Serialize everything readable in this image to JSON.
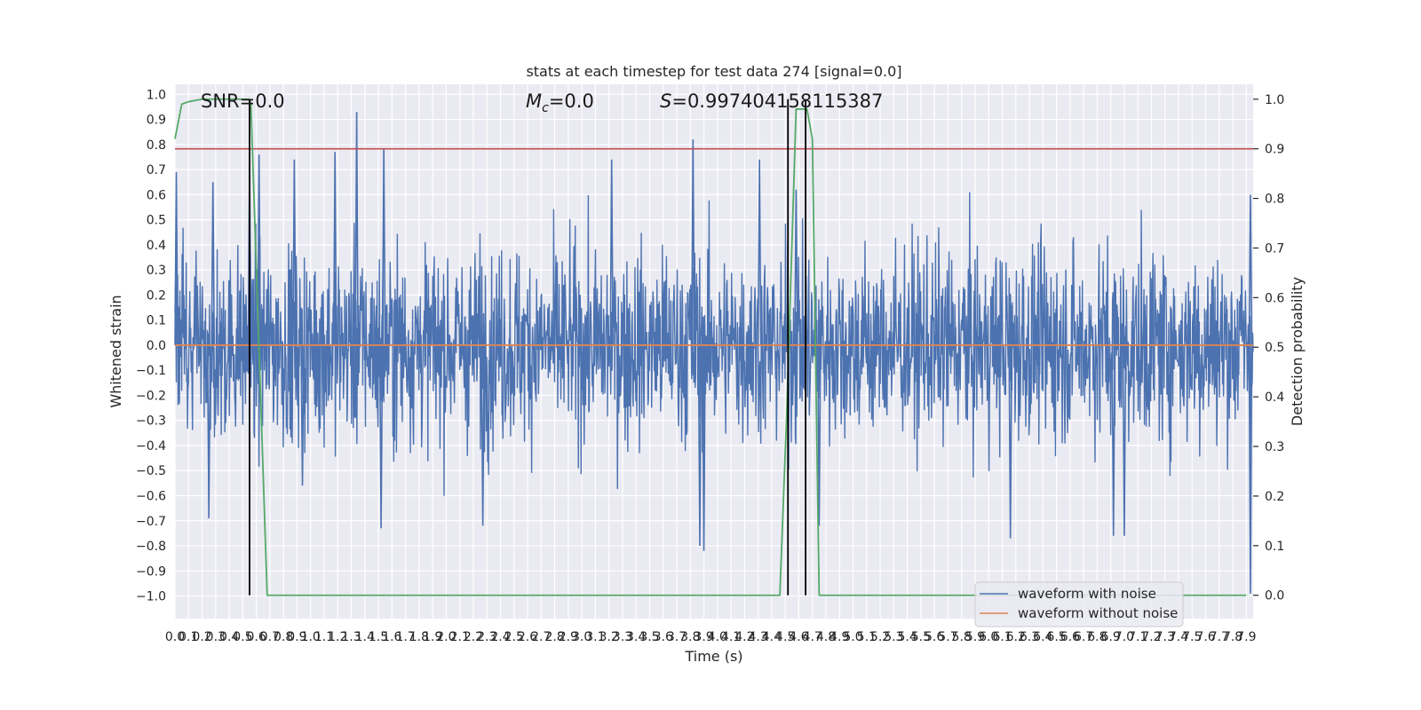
{
  "chart_data": {
    "type": "line",
    "title": "stats at each timestep for test data 274 [signal=0.0]",
    "xlabel": "Time (s)",
    "ylabel_left": "Whitened strain",
    "ylabel_right": "Detection probability",
    "xlim": [
      0.0,
      7.95
    ],
    "ylim_left": [
      -1.09,
      1.04
    ],
    "ylim_right": [
      -0.047,
      1.03
    ],
    "x_ticks": [
      "0.0",
      "0.1",
      "0.2",
      "0.3",
      "0.4",
      "0.5",
      "0.6",
      "0.7",
      "0.8",
      "0.9",
      "1.0",
      "1.1",
      "1.2",
      "1.3",
      "1.4",
      "1.5",
      "1.6",
      "1.7",
      "1.8",
      "1.9",
      "2.0",
      "2.1",
      "2.2",
      "2.3",
      "2.4",
      "2.5",
      "2.6",
      "2.7",
      "2.8",
      "2.9",
      "3.0",
      "3.1",
      "3.2",
      "3.3",
      "3.4",
      "3.5",
      "3.6",
      "3.7",
      "3.8",
      "3.9",
      "4.0",
      "4.1",
      "4.2",
      "4.3",
      "4.4",
      "4.5",
      "4.6",
      "4.7",
      "4.8",
      "4.9",
      "5.0",
      "5.1",
      "5.2",
      "5.3",
      "5.4",
      "5.5",
      "5.6",
      "5.7",
      "5.8",
      "5.9",
      "6.0",
      "6.1",
      "6.2",
      "6.3",
      "6.4",
      "6.5",
      "6.6",
      "6.7",
      "6.8",
      "6.9",
      "7.0",
      "7.1",
      "7.2",
      "7.3",
      "7.4",
      "7.5",
      "7.6",
      "7.7",
      "7.8",
      "7.9"
    ],
    "y_ticks_left": [
      "1.0",
      "0.9",
      "0.8",
      "0.7",
      "0.6",
      "0.5",
      "0.4",
      "0.3",
      "0.2",
      "0.1",
      "0.0",
      "−0.1",
      "−0.2",
      "−0.3",
      "−0.4",
      "−0.5",
      "−0.6",
      "−0.7",
      "−0.8",
      "−0.9",
      "−1.0"
    ],
    "y_ticks_right": [
      "1.0",
      "0.9",
      "0.8",
      "0.7",
      "0.6",
      "0.5",
      "0.4",
      "0.3",
      "0.2",
      "0.1",
      "0.0"
    ],
    "annotations": {
      "snr": "SNR=0.0",
      "mc_symbol": "M",
      "mc_sub": "c",
      "mc_value": "=0.0",
      "s_symbol": "S",
      "s_value": "=0.997404158115387"
    },
    "legend": {
      "placement": "lower right",
      "entries": [
        "waveform with noise",
        "waveform without noise"
      ]
    },
    "series": [
      {
        "name": "waveform with noise",
        "axis": "left",
        "color": "#4c72b0",
        "style": "noise",
        "envelope_typical": 0.45,
        "peaks": [
          {
            "x": 0.01,
            "y": 0.69
          },
          {
            "x": 0.28,
            "y": 0.65
          },
          {
            "x": 0.55,
            "y": 0.72
          },
          {
            "x": 0.62,
            "y": 0.76
          },
          {
            "x": 0.88,
            "y": 0.74
          },
          {
            "x": 1.18,
            "y": 0.77
          },
          {
            "x": 1.34,
            "y": 0.93
          },
          {
            "x": 1.54,
            "y": 0.78
          },
          {
            "x": 3.22,
            "y": 0.74
          },
          {
            "x": 3.82,
            "y": 0.82
          },
          {
            "x": 4.31,
            "y": 0.74
          },
          {
            "x": 4.58,
            "y": 0.62
          },
          {
            "x": 7.93,
            "y": 0.6
          },
          {
            "x": 3.9,
            "y": -0.82
          },
          {
            "x": 3.87,
            "y": -0.8
          },
          {
            "x": 1.52,
            "y": -0.73
          },
          {
            "x": 0.25,
            "y": -0.69
          },
          {
            "x": 2.27,
            "y": -0.72
          },
          {
            "x": 6.16,
            "y": -0.77
          },
          {
            "x": 6.92,
            "y": -0.76
          },
          {
            "x": 7.0,
            "y": -0.76
          },
          {
            "x": 7.93,
            "y": -0.99
          },
          {
            "x": 0.94,
            "y": -0.56
          },
          {
            "x": 4.75,
            "y": -0.72
          }
        ]
      },
      {
        "name": "waveform without noise",
        "axis": "left",
        "color": "#dd8452",
        "x": [
          0.0,
          7.95
        ],
        "y": [
          0.0,
          0.0
        ]
      },
      {
        "axis": "right",
        "color": "#55a868",
        "x": [
          0.0,
          0.05,
          0.1,
          0.2,
          0.55,
          0.56,
          0.68,
          4.46,
          4.51,
          4.58,
          4.66,
          4.7,
          4.75,
          7.9
        ],
        "y": [
          0.92,
          0.99,
          0.995,
          1.0,
          1.0,
          0.99,
          0.0,
          0.0,
          0.36,
          0.98,
          0.98,
          0.92,
          0.0,
          0.0
        ]
      }
    ],
    "vertical_lines": {
      "color": "#000000",
      "x": [
        0.55,
        4.52,
        4.65
      ]
    },
    "threshold": {
      "axis": "right",
      "y": 0.9,
      "color": "#c44e52"
    },
    "grid": true
  }
}
